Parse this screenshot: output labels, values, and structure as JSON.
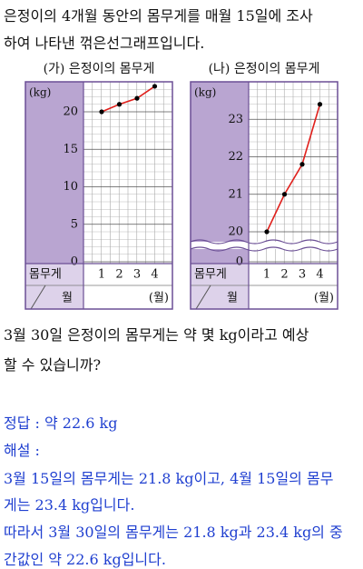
{
  "intro": [
    "은정이의 4개월 동안의 몸무게를 매월 15일에 조사",
    "하여 나타낸 꺾은선그래프입니다."
  ],
  "chart_data": [
    {
      "type": "line",
      "title": "(가) 은정이의 몸무게",
      "y_label": "(kg)",
      "row_label": "몸무게",
      "col_label": "월",
      "x_unit": "(월)",
      "categories": [
        "1",
        "2",
        "3",
        "4"
      ],
      "values": [
        20,
        21,
        21.8,
        23.4
      ],
      "color": "#e0201c",
      "point_color": "#000000",
      "ylim": [
        0,
        24
      ],
      "yticks": [
        0,
        5,
        10,
        15,
        20
      ],
      "grid": true,
      "axis_break": false
    },
    {
      "type": "line",
      "title": "(나) 은정이의 몸무게",
      "y_label": "(kg)",
      "row_label": "몸무게",
      "col_label": "월",
      "x_unit": "(월)",
      "categories": [
        "1",
        "2",
        "3",
        "4"
      ],
      "values": [
        20,
        21,
        21.8,
        23.4
      ],
      "color": "#e0201c",
      "point_color": "#000000",
      "ylim": [
        19.2,
        24
      ],
      "yticks": [
        0,
        20,
        21,
        22,
        23
      ],
      "grid": true,
      "axis_break": true
    }
  ],
  "question": [
    "3월 30일 은정이의 몸무게는 약 몇 kg이라고 예상",
    "할 수 있습니까?"
  ],
  "answer": "정답 : 약 22.6 kg",
  "explanation_label": "해설 :",
  "explanation": [
    "3월 15일의 몸무게는 21.8 kg이고, 4월 15일의 몸무",
    "게는 23.4 kg입니다.",
    "따라서 3월 30일의 몸무게는 21.8 kg과 23.4 kg의 중",
    "간값인 약 22.6 kg입니다."
  ]
}
